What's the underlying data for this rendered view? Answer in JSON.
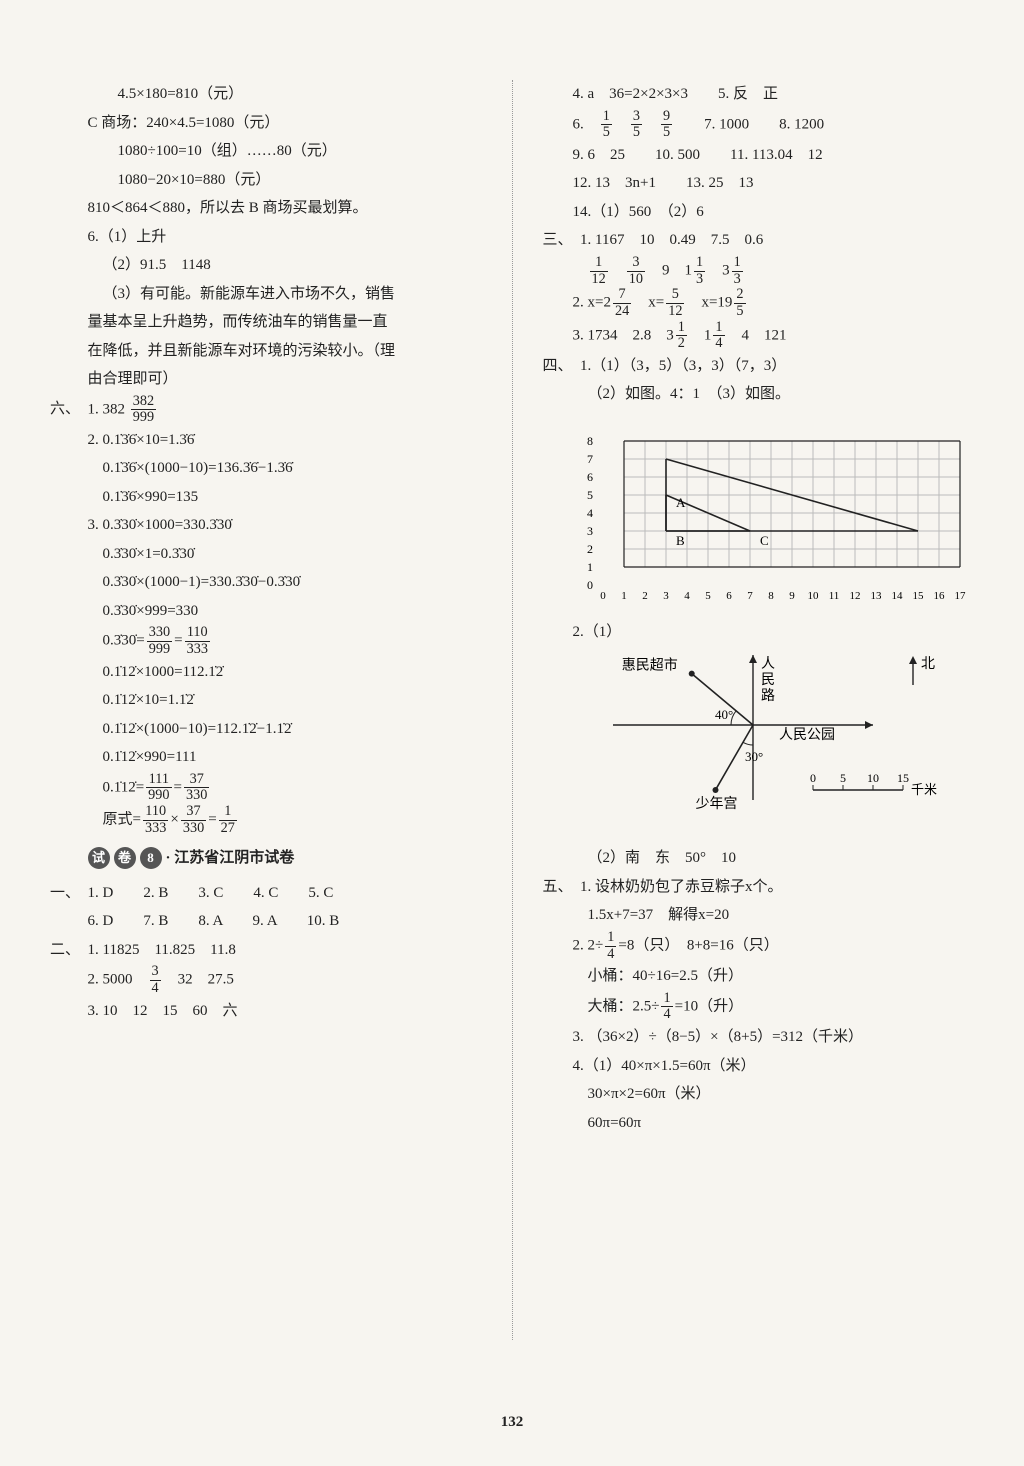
{
  "page_number": "132",
  "left": {
    "l1": "4.5×180=810（元）",
    "l2": "C 商场：240×4.5=1080（元）",
    "l3": "1080÷100=10（组）……80（元）",
    "l4": "1080−20×10=880（元）",
    "l5": "810＜864＜880，所以去 B 商场买最划算。",
    "l6": "6.（1）上升",
    "l7": "（2）91.5　1148",
    "l8": "（3）有可能。新能源车进入市场不久，销售",
    "l9": "量基本呈上升趋势，而传统油车的销售量一直",
    "l10": "在降低，并且新能源车对环境的污染较小。（理",
    "l11": "由合理即可）",
    "six_label": "六、",
    "six1a": "1. 382",
    "six1_frac_n": "382",
    "six1_frac_d": "999",
    "s2_1": "2. 0.1̇3̇6̇×10=1.3̇6̇",
    "s2_2": "0.1̇3̇6̇×(1000−10)=136.3̇6̇−1.3̇6̇",
    "s2_3": "0.1̇3̇6̇×990=135",
    "s3_1": "3. 0.3̇30̇×1000=330.3̇30̇",
    "s3_2": "0.3̇30̇×1=0.3̇30̇",
    "s3_3": "0.3̇30̇×(1000−1)=330.3̇30̇−0.3̇30̇",
    "s3_4": "0.3̇30̇×999=330",
    "s3_5a": "0.3̇30̇=",
    "s3_5f1n": "330",
    "s3_5f1d": "999",
    "s3_5eq": "=",
    "s3_5f2n": "110",
    "s3_5f2d": "333",
    "s3_6": "0.1̇12̇×1000=112.1̇2̇",
    "s3_7": "0.1̇12̇×10=1.1̇2̇",
    "s3_8": "0.1̇12̇×(1000−10)=112.1̇2̇−1.1̇2̇",
    "s3_9": "0.1̇12̇×990=111",
    "s3_10a": "0.1̇12̇=",
    "s3_10f1n": "111",
    "s3_10f1d": "990",
    "s3_10eq": "=",
    "s3_10f2n": "37",
    "s3_10f2d": "330",
    "s3_11a": "原式=",
    "s3_11f1n": "110",
    "s3_11f1d": "333",
    "s3_11m": "×",
    "s3_11f2n": "37",
    "s3_11f2d": "330",
    "s3_11eq": "=",
    "s3_11f3n": "1",
    "s3_11f3d": "27",
    "badge1": "试",
    "badge2": "卷",
    "badge3": "8",
    "test_title": "· 江苏省江阴市试卷",
    "one_label": "一、",
    "one_row1": "1. D　　2. B　　3. C　　4. C　　5. C",
    "one_row2": "6. D　　7. B　　8. A　　9. A　　10. B",
    "two_label": "二、",
    "two_1": "1. 11825　11.825　11.8",
    "two_2a": "2. 5000　",
    "two_2fn": "3",
    "two_2fd": "4",
    "two_2b": "　32　27.5",
    "two_3": "3. 10　12　15　60　六"
  },
  "right": {
    "r1": "4. a　36=2×2×3×3　　5. 反　正",
    "r2a": "6.　",
    "r2f1n": "1",
    "r2f1d": "5",
    "r2s": "　",
    "r2f2n": "3",
    "r2f2d": "5",
    "r2s2": "　",
    "r2f3n": "9",
    "r2f3d": "5",
    "r2b": "　　7. 1000　　8. 1200",
    "r3": "9. 6　25　　10. 500　　11. 113.04　12",
    "r4": "12. 13　3n+1　　13. 25　13",
    "r5": "14.（1）560　（2）6",
    "three_label": "三、",
    "t1": "1. 1167　10　0.49　7.5　0.6",
    "t1ba_f1n": "1",
    "t1ba_f1d": "12",
    "t1bs": "　",
    "t1ba_f2n": "3",
    "t1ba_f2d": "10",
    "t1bb": "　9　1",
    "t1ba_f3n": "1",
    "t1ba_f3d": "3",
    "t1bc": "　3",
    "t1ba_f4n": "1",
    "t1ba_f4d": "3",
    "t2a": "2. x=2",
    "t2f1n": "7",
    "t2f1d": "24",
    "t2b": "　x=",
    "t2f2n": "5",
    "t2f2d": "12",
    "t2c": "　x=19",
    "t2f3n": "2",
    "t2f3d": "5",
    "t3a": "3. 1734　2.8　3",
    "t3f1n": "1",
    "t3f1d": "2",
    "t3b": "　1",
    "t3f2n": "1",
    "t3f2d": "4",
    "t3c": "　4　121",
    "four_label": "四、",
    "f1": "1.（1）（3，5）（3，3）（7，3）",
    "f2": "（2）如图。4：1　（3）如图。",
    "chart": {
      "y_ticks": [
        0,
        1,
        2,
        3,
        4,
        5,
        6,
        7,
        8
      ],
      "x_ticks": [
        0,
        1,
        2,
        3,
        4,
        5,
        6,
        7,
        8,
        9,
        10,
        11,
        12,
        13,
        14,
        15,
        16,
        17
      ],
      "tri1": [
        [
          3,
          5
        ],
        [
          3,
          3
        ],
        [
          7,
          3
        ]
      ],
      "tri2": [
        [
          3,
          7
        ],
        [
          3,
          3
        ],
        [
          15,
          3
        ]
      ],
      "labelA": "A",
      "labelB": "B",
      "labelC": "C",
      "grid_color": "#bbb",
      "line_color": "#222"
    },
    "g2_1": "2.（1）",
    "map": {
      "huimin": "惠民超市",
      "renmin_road": "人\n民\n路",
      "park": "人民公园",
      "youth": "少年宫",
      "north": "北",
      "ang1": "40°",
      "ang2": "30°",
      "scale_ticks": [
        "0",
        "5",
        "10",
        "15"
      ],
      "scale_unit": "千米"
    },
    "g2_2": "（2）南　东　50°　10",
    "five_label": "五、",
    "v1_1": "1. 设林奶奶包了赤豆粽子x个。",
    "v1_2": "1.5x+7=37　解得x=20",
    "v2_1a": "2. 2÷",
    "v2_1fn": "1",
    "v2_1fd": "4",
    "v2_1b": "=8（只）　8+8=16（只）",
    "v2_2": "小桶：40÷16=2.5（升）",
    "v2_3a": "大桶：2.5÷",
    "v2_3fn": "1",
    "v2_3fd": "4",
    "v2_3b": "=10（升）",
    "v3": "3. （36×2）÷（8−5）×（8+5）=312（千米）",
    "v4_1": "4.（1）40×π×1.5=60π（米）",
    "v4_2": "30×π×2=60π（米）",
    "v4_3": "60π=60π"
  }
}
